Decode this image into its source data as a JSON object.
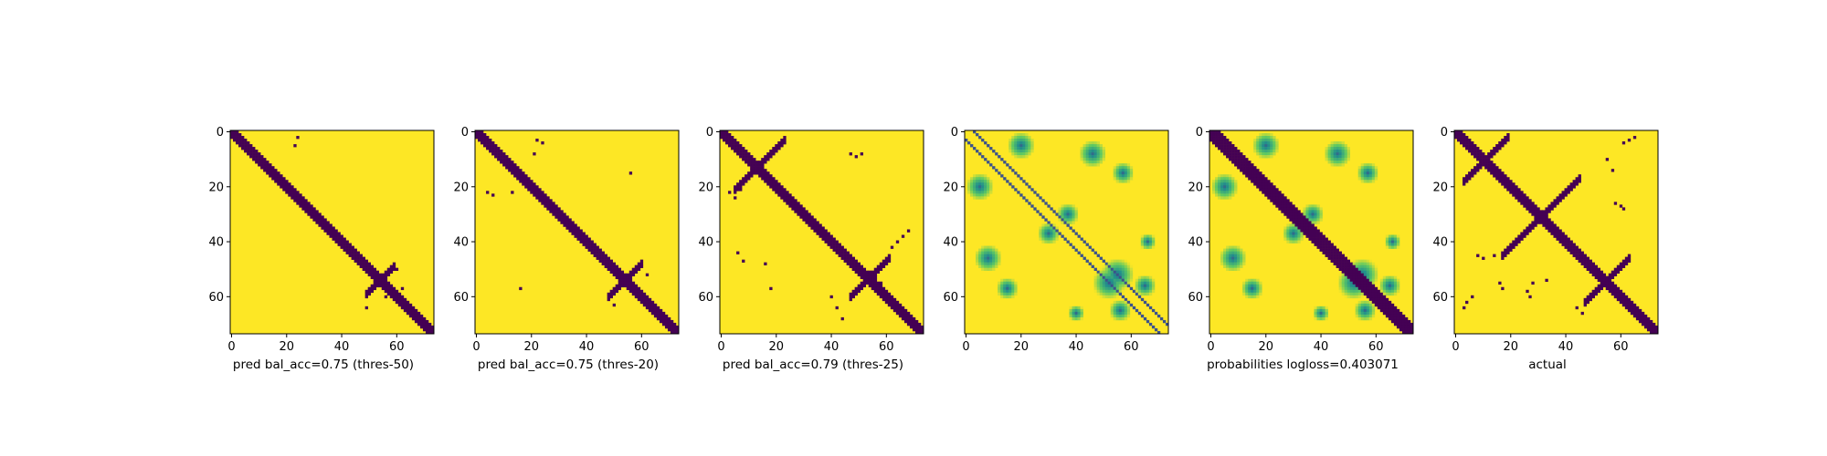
{
  "colors": {
    "background_value": "#fde725",
    "feature_value": "#440154",
    "colormap": "viridis"
  },
  "chart_data": [
    {
      "type": "heatmap",
      "panel_id": "p1",
      "xlabel": "pred bal_acc=0.75 (thres-50)",
      "xlim": [
        0,
        74
      ],
      "ylim": [
        74,
        0
      ],
      "xticks": [
        0,
        20,
        40,
        60
      ],
      "yticks": [
        0,
        20,
        40,
        60
      ],
      "grid": false,
      "features": {
        "diagonal_band": {
          "width": 2.2,
          "value": 0
        },
        "blob": {
          "center": [
            54,
            54
          ],
          "arm_length": 5,
          "value": 0
        },
        "scattered": [
          [
            24,
            2
          ],
          [
            23,
            5
          ],
          [
            22,
            24
          ],
          [
            20,
            21
          ],
          [
            60,
            50
          ],
          [
            62,
            57
          ],
          [
            56,
            60
          ],
          [
            49,
            64
          ]
        ]
      }
    },
    {
      "type": "heatmap",
      "panel_id": "p2",
      "xlabel": "pred bal_acc=0.75 (thres-20)",
      "xlim": [
        0,
        74
      ],
      "ylim": [
        74,
        0
      ],
      "xticks": [
        0,
        20,
        40,
        60
      ],
      "yticks": [
        0,
        20,
        40,
        60
      ],
      "grid": false,
      "features": {
        "diagonal_band": {
          "width": 2.4,
          "value": 0
        },
        "blob": {
          "center": [
            54,
            54
          ],
          "arm_length": 6,
          "value": 0
        },
        "scattered": [
          [
            22,
            3
          ],
          [
            24,
            4
          ],
          [
            21,
            8
          ],
          [
            4,
            22
          ],
          [
            6,
            23
          ],
          [
            56,
            15
          ],
          [
            16,
            57
          ],
          [
            13,
            22
          ],
          [
            62,
            52
          ],
          [
            50,
            63
          ]
        ]
      }
    },
    {
      "type": "heatmap",
      "panel_id": "p3",
      "xlabel": "pred bal_acc=0.79 (thres-25)",
      "xlim": [
        0,
        74
      ],
      "ylim": [
        74,
        0
      ],
      "xticks": [
        0,
        20,
        40,
        60
      ],
      "yticks": [
        0,
        20,
        40,
        60
      ],
      "grid": false,
      "features": {
        "diagonal_band": {
          "width": 2.7,
          "value": 0
        },
        "antidiagonal_arm": {
          "center": [
            14,
            12
          ],
          "length": 9,
          "value": 0
        },
        "blob": {
          "center": [
            54,
            53
          ],
          "arm_length": 7,
          "value": 0
        },
        "scattered": [
          [
            47,
            8
          ],
          [
            49,
            9
          ],
          [
            51,
            8
          ],
          [
            3,
            22
          ],
          [
            5,
            24
          ],
          [
            7,
            21
          ],
          [
            58,
            55
          ],
          [
            57,
            57
          ],
          [
            62,
            42
          ],
          [
            64,
            40
          ],
          [
            66,
            38
          ],
          [
            68,
            36
          ],
          [
            40,
            60
          ],
          [
            42,
            64
          ],
          [
            44,
            68
          ],
          [
            16,
            48
          ],
          [
            18,
            57
          ],
          [
            6,
            44
          ],
          [
            8,
            47
          ]
        ]
      }
    },
    {
      "type": "heatmap",
      "panel_id": "p4",
      "xlabel": "",
      "xlim": [
        0,
        74
      ],
      "ylim": [
        74,
        0
      ],
      "xticks": [
        0,
        20,
        40,
        60
      ],
      "yticks": [
        0,
        20,
        40,
        60
      ],
      "grid": false,
      "features": {
        "offdiag_lines": {
          "offsets": [
            -3,
            3
          ],
          "value": 0.25
        },
        "soft_blobs": [
          [
            20,
            5,
            5
          ],
          [
            5,
            20,
            5
          ],
          [
            46,
            8,
            5
          ],
          [
            8,
            46,
            5
          ],
          [
            57,
            15,
            4
          ],
          [
            15,
            57,
            4
          ],
          [
            37,
            30,
            4
          ],
          [
            30,
            37,
            4
          ],
          [
            52,
            55,
            6
          ],
          [
            55,
            52,
            6
          ],
          [
            65,
            56,
            4
          ],
          [
            56,
            65,
            4
          ],
          [
            40,
            66,
            3
          ],
          [
            66,
            40,
            3
          ]
        ]
      }
    },
    {
      "type": "heatmap",
      "panel_id": "p5",
      "xlabel": "probabilities logloss=0.403071",
      "xlim": [
        0,
        74
      ],
      "ylim": [
        74,
        0
      ],
      "xticks": [
        0,
        20,
        40,
        60
      ],
      "yticks": [
        0,
        20,
        40,
        60
      ],
      "grid": false,
      "features": {
        "diagonal_band": {
          "width": 3.0,
          "value": 0
        },
        "soft_blobs": [
          [
            20,
            5,
            5
          ],
          [
            5,
            20,
            5
          ],
          [
            46,
            8,
            5
          ],
          [
            8,
            46,
            5
          ],
          [
            57,
            15,
            4
          ],
          [
            15,
            57,
            4
          ],
          [
            37,
            30,
            4
          ],
          [
            30,
            37,
            4
          ],
          [
            52,
            55,
            6
          ],
          [
            55,
            52,
            6
          ],
          [
            65,
            56,
            4
          ],
          [
            56,
            65,
            4
          ],
          [
            40,
            66,
            3
          ],
          [
            66,
            40,
            3
          ]
        ]
      }
    },
    {
      "type": "heatmap",
      "panel_id": "p6",
      "xlabel": "actual",
      "xlim": [
        0,
        74
      ],
      "ylim": [
        74,
        0
      ],
      "xticks": [
        0,
        20,
        40,
        60
      ],
      "yticks": [
        0,
        20,
        40,
        60
      ],
      "grid": false,
      "features": {
        "diagonal_band": {
          "width": 2.6,
          "value": 0
        },
        "antidiagonal_arm": {
          "center": [
            31,
            31
          ],
          "length": 14,
          "value": 0
        },
        "antidiagonal_arm_2": {
          "center": [
            55,
            54
          ],
          "length": 8,
          "value": 0
        },
        "antidiagonal_arm_3": {
          "center": [
            11,
            10
          ],
          "length": 8,
          "value": 0
        },
        "scattered": [
          [
            61,
            4
          ],
          [
            63,
            3
          ],
          [
            65,
            2
          ],
          [
            55,
            10
          ],
          [
            57,
            14
          ],
          [
            58,
            26
          ],
          [
            60,
            27
          ],
          [
            61,
            28
          ],
          [
            26,
            58
          ],
          [
            27,
            60
          ],
          [
            4,
            62
          ],
          [
            3,
            64
          ],
          [
            6,
            60
          ],
          [
            8,
            45
          ],
          [
            10,
            46
          ],
          [
            14,
            45
          ],
          [
            16,
            55
          ],
          [
            17,
            57
          ],
          [
            44,
            64
          ],
          [
            46,
            66
          ],
          [
            33,
            54
          ],
          [
            28,
            55
          ]
        ]
      }
    }
  ]
}
